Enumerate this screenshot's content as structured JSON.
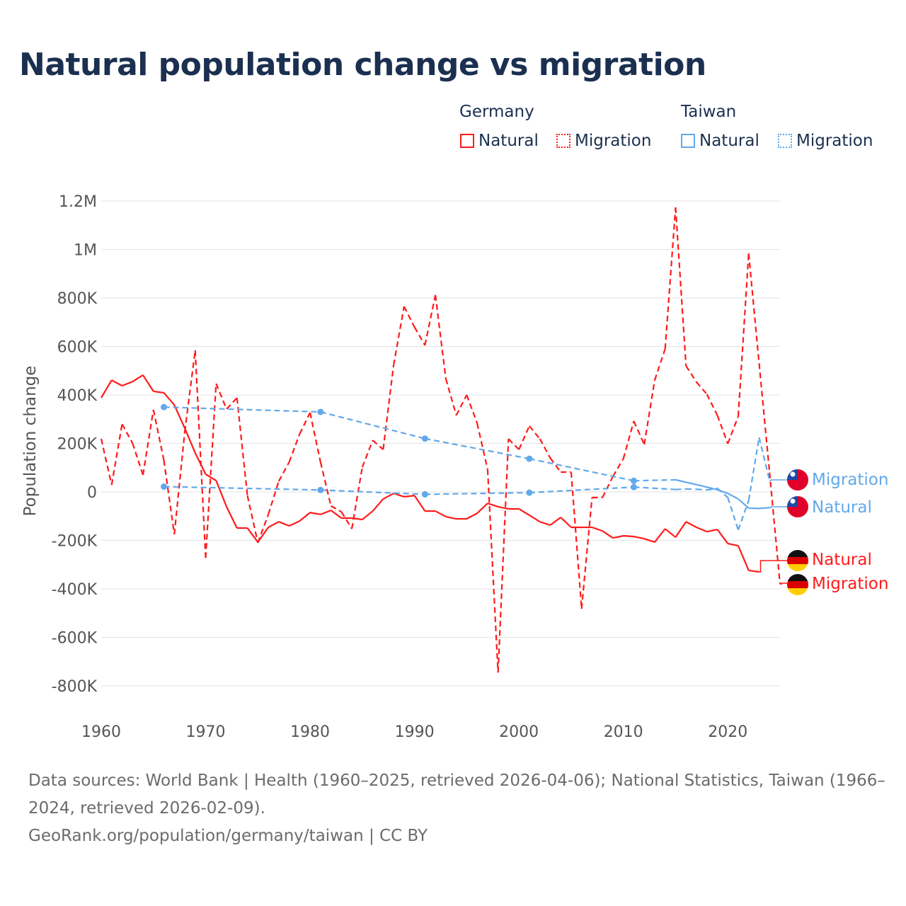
{
  "title": "Natural population change vs migration",
  "legend": {
    "groups": [
      {
        "name": "Germany",
        "items": [
          {
            "label": "Natural"
          },
          {
            "label": "Migration"
          }
        ]
      },
      {
        "name": "Taiwan",
        "items": [
          {
            "label": "Natural"
          },
          {
            "label": "Migration"
          }
        ]
      }
    ]
  },
  "end_labels": {
    "taiwan_migration": "Migration",
    "taiwan_natural": "Natural",
    "germany_natural": "Natural",
    "germany_migration": "Migration"
  },
  "footer": {
    "line1": "Data sources: World Bank | Health (1960–2025, retrieved 2026-04-06); National Statistics, Taiwan (1966–",
    "line2": "2024, retrieved 2026-02-09).",
    "line3": "GeoRank.org/population/germany/taiwan | CC BY"
  },
  "colors": {
    "germany": "#ff1a1a",
    "taiwan": "#62a8ea",
    "title": "#1b3050"
  },
  "chart_data": {
    "type": "line",
    "title": "Natural population change vs migration",
    "xlabel": "",
    "ylabel": "Population change",
    "xlim": [
      1960,
      2025
    ],
    "ylim": [
      -800000,
      1200000
    ],
    "xticks": [
      1960,
      1970,
      1980,
      1990,
      2000,
      2010,
      2020
    ],
    "xtick_labels": [
      "1960",
      "1970",
      "1980",
      "1990",
      "2000",
      "2010",
      "2020"
    ],
    "yticks": [
      1200000,
      1000000,
      800000,
      600000,
      400000,
      200000,
      0,
      -200000,
      -400000,
      -600000,
      -800000
    ],
    "ytick_labels": [
      "1.2M",
      "1M",
      "800K",
      "600K",
      "400K",
      "200K",
      "0",
      "-200K",
      "-400K",
      "-600K",
      "-800K"
    ],
    "grid": true,
    "legend_position": "top-right",
    "series": [
      {
        "name": "Germany Natural",
        "country": "germany",
        "style": "solid",
        "x_start": 1960,
        "values": [
          388000,
          461000,
          438000,
          455000,
          482000,
          415000,
          409000,
          359000,
          263000,
          161000,
          73000,
          47000,
          -61000,
          -149000,
          -149000,
          -207000,
          -146000,
          -123000,
          -140000,
          -120000,
          -85000,
          -93000,
          -76000,
          -108000,
          -108000,
          -114000,
          -79000,
          -29000,
          -6000,
          -20000,
          -15000,
          -79000,
          -79000,
          -102000,
          -111000,
          -111000,
          -88000,
          -47000,
          -61000,
          -70000,
          -70000,
          -96000,
          -123000,
          -137000,
          -105000,
          -146000,
          -146000,
          -146000,
          -161000,
          -190000,
          -181000,
          -184000,
          -193000,
          -207000,
          -152000,
          -187000,
          -123000,
          -146000,
          -164000,
          -155000,
          -213000,
          -222000,
          -324000,
          -330000
        ]
      },
      {
        "name": "Germany Migration",
        "country": "germany",
        "style": "dashed",
        "x_start": 1960,
        "values": [
          219000,
          29000,
          280000,
          201000,
          70000,
          339000,
          131000,
          -175000,
          248000,
          584000,
          -272000,
          447000,
          342000,
          388000,
          -15000,
          -210000,
          -93000,
          44000,
          123000,
          239000,
          327000,
          123000,
          -58000,
          -82000,
          -152000,
          102000,
          213000,
          175000,
          523000,
          765000,
          680000,
          605000,
          812000,
          467000,
          316000,
          400000,
          283000,
          93000,
          -745000,
          219000,
          175000,
          272000,
          219000,
          140000,
          82000,
          82000,
          -482000,
          -23000,
          -23000,
          64000,
          137000,
          292000,
          196000,
          461000,
          590000,
          1174000,
          520000,
          453000,
          403000,
          316000,
          199000,
          312000,
          984000,
          530000,
          80000,
          -380000
        ]
      },
      {
        "name": "Taiwan Natural",
        "country": "taiwan",
        "style": "solid",
        "x": [
          1966,
          1981,
          1991,
          2001,
          2011,
          2015,
          2016,
          2017,
          2018,
          2019,
          2020,
          2021,
          2022,
          2023,
          2024
        ],
        "values": [
          350000,
          330000,
          220000,
          137000,
          46000,
          50000,
          40000,
          30000,
          20000,
          9000,
          -6000,
          -29000,
          -67000,
          -68000,
          -65000
        ]
      },
      {
        "name": "Taiwan Migration",
        "country": "taiwan",
        "style": "dashed",
        "x": [
          1966,
          1981,
          1991,
          2001,
          2011,
          2015,
          2016,
          2017,
          2018,
          2019,
          2020,
          2021,
          2022,
          2023,
          2024
        ],
        "values": [
          22000,
          8000,
          -10000,
          -3000,
          20000,
          10000,
          12000,
          11000,
          8000,
          15000,
          -23000,
          -157000,
          -35000,
          225000,
          47000
        ]
      }
    ]
  }
}
